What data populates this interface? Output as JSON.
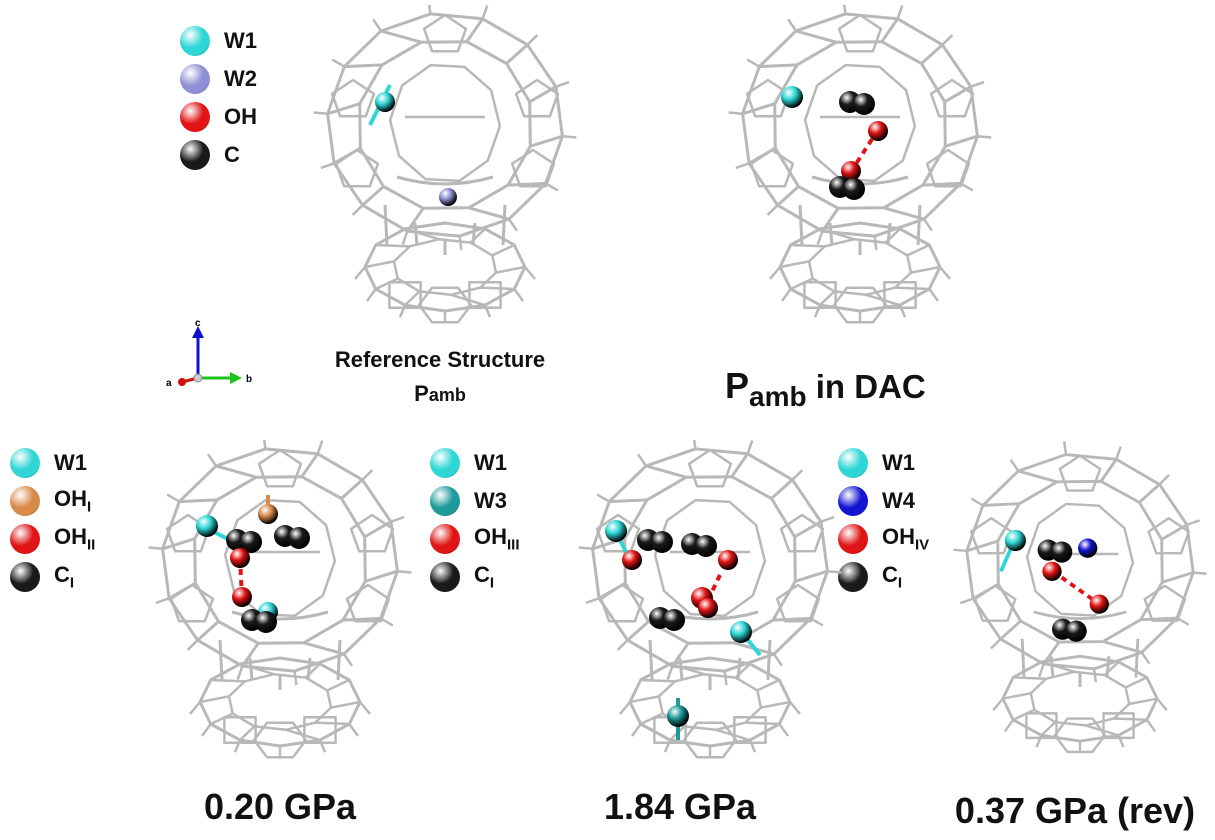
{
  "colors": {
    "W1": "#2fd6d6",
    "W2": "#8f8fd6",
    "W3": "#1f9a9a",
    "W4": "#1414d2",
    "OH": "#e01414",
    "OH_I": "#d98a4a",
    "C": "#1a1a1a",
    "frame": "#b8b8b8"
  },
  "legends": {
    "top": [
      {
        "label": "W1",
        "sub": "",
        "color": "W1"
      },
      {
        "label": "W2",
        "sub": "",
        "color": "W2"
      },
      {
        "label": "OH",
        "sub": "",
        "color": "OH"
      },
      {
        "label": "C",
        "sub": "",
        "color": "C"
      }
    ],
    "p020": [
      {
        "label": "W1",
        "sub": "",
        "color": "W1"
      },
      {
        "label": "OH",
        "sub": "I",
        "color": "OH_I"
      },
      {
        "label": "OH",
        "sub": "II",
        "color": "OH"
      },
      {
        "label": "C",
        "sub": "I",
        "color": "C"
      }
    ],
    "p184": [
      {
        "label": "W1",
        "sub": "",
        "color": "W1"
      },
      {
        "label": "W3",
        "sub": "",
        "color": "W3"
      },
      {
        "label": "OH",
        "sub": "III",
        "color": "OH"
      },
      {
        "label": "C",
        "sub": "I",
        "color": "C"
      }
    ],
    "p037": [
      {
        "label": "W1",
        "sub": "",
        "color": "W1"
      },
      {
        "label": "W4",
        "sub": "",
        "color": "W4"
      },
      {
        "label": "OH",
        "sub": "IV",
        "color": "OH"
      },
      {
        "label": "C",
        "sub": "I",
        "color": "C"
      }
    ]
  },
  "axes": {
    "c": "c",
    "a": "a",
    "b": "b"
  },
  "titles": {
    "reference_line1": "Reference Structure",
    "reference_line2": "P",
    "reference_line2_sub": "amb",
    "dac_main": "P",
    "dac_sub": "amb",
    "dac_rest": " in DAC",
    "p020": "0.20 GPa",
    "p184": "1.84 GPa",
    "p037": "0.37 GPa (rev)"
  }
}
